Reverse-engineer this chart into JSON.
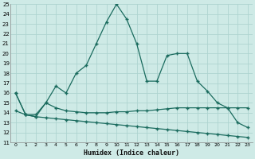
{
  "xlabel": "Humidex (Indice chaleur)",
  "bg_color": "#ceeae6",
  "grid_color": "#aed4d0",
  "line_color": "#1a6b5e",
  "x": [
    0,
    1,
    2,
    3,
    4,
    5,
    6,
    7,
    8,
    9,
    10,
    11,
    12,
    13,
    14,
    15,
    16,
    17,
    18,
    19,
    20,
    21,
    22,
    23
  ],
  "curve1": [
    16.0,
    13.8,
    13.6,
    15.0,
    16.7,
    16.0,
    18.0,
    18.8,
    21.0,
    23.2,
    25.0,
    23.5,
    21.0,
    17.2,
    17.2,
    19.8,
    20.0,
    20.0,
    17.2,
    16.2,
    15.0,
    14.5,
    13.0,
    12.5
  ],
  "curve2": [
    16.0,
    13.8,
    13.8,
    15.0,
    14.5,
    14.2,
    14.1,
    14.0,
    14.0,
    14.0,
    14.1,
    14.1,
    14.2,
    14.2,
    14.3,
    14.4,
    14.5,
    14.5,
    14.5,
    14.5,
    14.5,
    14.5,
    14.5,
    14.5
  ],
  "curve3": [
    14.2,
    13.8,
    13.6,
    13.5,
    13.4,
    13.3,
    13.2,
    13.1,
    13.0,
    12.9,
    12.8,
    12.7,
    12.6,
    12.5,
    12.4,
    12.3,
    12.2,
    12.1,
    12.0,
    11.9,
    11.8,
    11.7,
    11.6,
    11.5
  ],
  "ylim": [
    11,
    25
  ],
  "xlim": [
    -0.5,
    23.5
  ],
  "yticks": [
    11,
    12,
    13,
    14,
    15,
    16,
    17,
    18,
    19,
    20,
    21,
    22,
    23,
    24,
    25
  ],
  "xticks": [
    0,
    1,
    2,
    3,
    4,
    5,
    6,
    7,
    8,
    9,
    10,
    11,
    12,
    13,
    14,
    15,
    16,
    17,
    18,
    19,
    20,
    21,
    22,
    23
  ]
}
